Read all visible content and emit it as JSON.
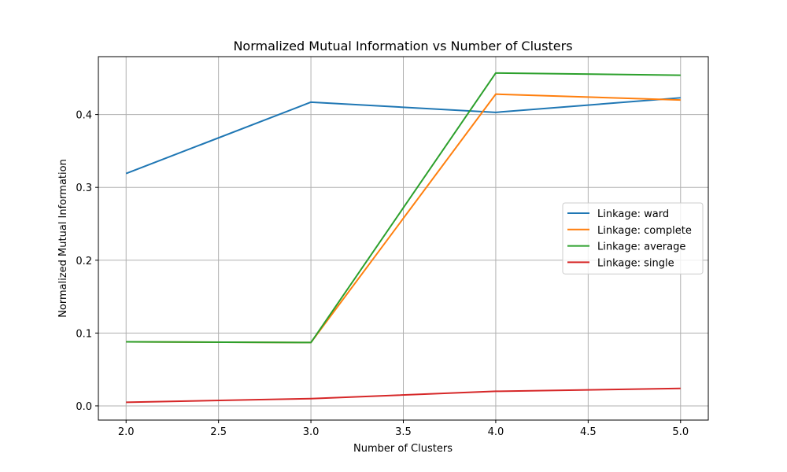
{
  "chart_data": {
    "type": "line",
    "title": "Normalized Mutual Information vs Number of Clusters",
    "xlabel": "Number of Clusters",
    "ylabel": "Normalized Mutual Information",
    "x": [
      2,
      3,
      4,
      5
    ],
    "xlim": [
      1.85,
      5.15
    ],
    "ylim": [
      -0.0195,
      0.4795
    ],
    "xticks": [
      2.0,
      2.5,
      3.0,
      3.5,
      4.0,
      4.5,
      5.0
    ],
    "xtick_labels": [
      "2.0",
      "2.5",
      "3.0",
      "3.5",
      "4.0",
      "4.5",
      "5.0"
    ],
    "yticks": [
      0.0,
      0.1,
      0.2,
      0.3,
      0.4
    ],
    "ytick_labels": [
      "0.0",
      "0.1",
      "0.2",
      "0.3",
      "0.4"
    ],
    "grid": true,
    "legend_position": "center-right",
    "series": [
      {
        "name": "Linkage: ward",
        "color": "#1f77b4",
        "values": [
          0.319,
          0.417,
          0.403,
          0.423
        ]
      },
      {
        "name": "Linkage: complete",
        "color": "#ff7f0e",
        "values": [
          0.088,
          0.087,
          0.428,
          0.42
        ]
      },
      {
        "name": "Linkage: average",
        "color": "#2ca02c",
        "values": [
          0.088,
          0.087,
          0.457,
          0.454
        ]
      },
      {
        "name": "Linkage: single",
        "color": "#d62728",
        "values": [
          0.005,
          0.01,
          0.02,
          0.024
        ]
      }
    ]
  }
}
